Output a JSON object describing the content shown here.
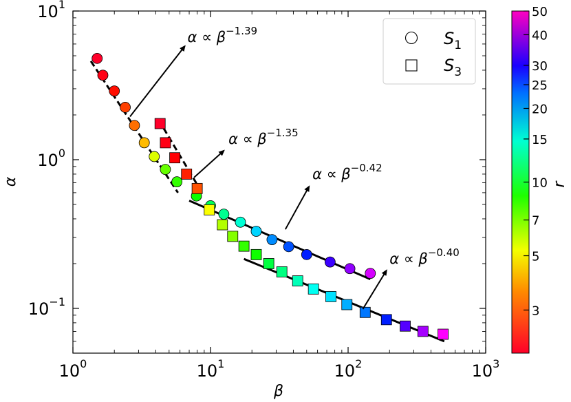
{
  "chart_data": {
    "type": "scatter",
    "xscale": "log",
    "yscale": "log",
    "xlim": [
      1,
      1000
    ],
    "ylim": [
      0.05,
      10
    ],
    "xlabel": "β",
    "ylabel": "α",
    "x_ticks": [
      {
        "value": 1,
        "base": "10",
        "exp": "0"
      },
      {
        "value": 10,
        "base": "10",
        "exp": "1"
      },
      {
        "value": 100,
        "base": "10",
        "exp": "2"
      },
      {
        "value": 1000,
        "base": "10",
        "exp": "3"
      }
    ],
    "y_ticks": [
      {
        "value": 0.1,
        "base": "10",
        "exp": "−1"
      },
      {
        "value": 1,
        "base": "10",
        "exp": "0"
      },
      {
        "value": 10,
        "base": "10",
        "exp": "1"
      }
    ],
    "legend": {
      "position": "top-right",
      "entries": [
        {
          "marker": "circle",
          "label": "S",
          "sub": "1"
        },
        {
          "marker": "square",
          "label": "S",
          "sub": "3"
        }
      ]
    },
    "colorbar": {
      "label": "r",
      "scale": "log",
      "range": [
        2,
        50
      ],
      "colormap": "gist_rainbow_r",
      "ticks": [
        {
          "value": 3,
          "label": "3"
        },
        {
          "value": 5,
          "label": "5"
        },
        {
          "value": 7,
          "label": "7"
        },
        {
          "value": 10,
          "label": "10"
        },
        {
          "value": 15,
          "label": "15"
        },
        {
          "value": 20,
          "label": "20"
        },
        {
          "value": 25,
          "label": "25"
        },
        {
          "value": 30,
          "label": "30"
        },
        {
          "value": 40,
          "label": "40"
        },
        {
          "value": 50,
          "label": "50"
        }
      ]
    },
    "series": [
      {
        "name": "S1",
        "marker": "circle",
        "points": [
          {
            "x": 1.5,
            "y": 4.8,
            "r": 2.0
          },
          {
            "x": 1.65,
            "y": 3.7,
            "r": 2.1
          },
          {
            "x": 2.0,
            "y": 2.9,
            "r": 2.3
          },
          {
            "x": 2.4,
            "y": 2.25,
            "r": 2.6
          },
          {
            "x": 2.8,
            "y": 1.7,
            "r": 2.9
          },
          {
            "x": 3.3,
            "y": 1.3,
            "r": 3.5
          },
          {
            "x": 3.9,
            "y": 1.05,
            "r": 4.5
          },
          {
            "x": 4.7,
            "y": 0.86,
            "r": 6.0
          },
          {
            "x": 5.7,
            "y": 0.71,
            "r": 6.8
          },
          {
            "x": 7.9,
            "y": 0.57,
            "r": 7.5
          },
          {
            "x": 10.0,
            "y": 0.49,
            "r": 9.5
          },
          {
            "x": 12.5,
            "y": 0.43,
            "r": 11.0
          },
          {
            "x": 16.5,
            "y": 0.38,
            "r": 13.0
          },
          {
            "x": 21.5,
            "y": 0.33,
            "r": 16.0
          },
          {
            "x": 28.0,
            "y": 0.29,
            "r": 19.0
          },
          {
            "x": 37.0,
            "y": 0.26,
            "r": 22.0
          },
          {
            "x": 50.0,
            "y": 0.23,
            "r": 25.0
          },
          {
            "x": 74.0,
            "y": 0.205,
            "r": 31.0
          },
          {
            "x": 103.0,
            "y": 0.185,
            "r": 38.0
          },
          {
            "x": 145.0,
            "y": 0.172,
            "r": 45.0
          }
        ]
      },
      {
        "name": "S3",
        "marker": "square",
        "points": [
          {
            "x": 4.3,
            "y": 1.75,
            "r": 2.0
          },
          {
            "x": 4.7,
            "y": 1.3,
            "r": 2.1
          },
          {
            "x": 5.5,
            "y": 1.03,
            "r": 2.2
          },
          {
            "x": 6.7,
            "y": 0.8,
            "r": 2.4
          },
          {
            "x": 8.0,
            "y": 0.64,
            "r": 2.7
          },
          {
            "x": 9.8,
            "y": 0.46,
            "r": 4.2
          },
          {
            "x": 12.2,
            "y": 0.365,
            "r": 5.0
          },
          {
            "x": 14.5,
            "y": 0.305,
            "r": 5.6
          },
          {
            "x": 17.5,
            "y": 0.262,
            "r": 6.8
          },
          {
            "x": 21.5,
            "y": 0.23,
            "r": 7.5
          },
          {
            "x": 26.5,
            "y": 0.2,
            "r": 9.0
          },
          {
            "x": 33.0,
            "y": 0.176,
            "r": 10.5
          },
          {
            "x": 43.0,
            "y": 0.153,
            "r": 12.0
          },
          {
            "x": 56.0,
            "y": 0.135,
            "r": 14.0
          },
          {
            "x": 75.0,
            "y": 0.12,
            "r": 15.5
          },
          {
            "x": 98.0,
            "y": 0.106,
            "r": 17.5
          },
          {
            "x": 133.0,
            "y": 0.094,
            "r": 20.0
          },
          {
            "x": 190.0,
            "y": 0.084,
            "r": 25.0
          },
          {
            "x": 260.0,
            "y": 0.076,
            "r": 33.0
          },
          {
            "x": 350.0,
            "y": 0.07,
            "r": 40.0
          },
          {
            "x": 490.0,
            "y": 0.067,
            "r": 50.0
          }
        ]
      }
    ],
    "fit_lines": [
      {
        "style": "dashed",
        "x1": 1.35,
        "y1": 4.6,
        "x2": 5.8,
        "y2": 0.6
      },
      {
        "style": "dashed",
        "x1": 4.2,
        "y1": 1.85,
        "x2": 8.0,
        "y2": 0.68
      },
      {
        "style": "solid",
        "x1": 7.0,
        "y1": 0.53,
        "x2": 145.0,
        "y2": 0.157
      },
      {
        "style": "solid",
        "x1": 17.5,
        "y1": 0.215,
        "x2": 500.0,
        "y2": 0.06
      }
    ],
    "annotations": [
      {
        "base": "α ∝ β",
        "exp": "−1.39",
        "text_x": 6.8,
        "text_y": 6.2,
        "tail_x": 2.6,
        "tail_y": 1.95,
        "head_x": 6.5,
        "head_y": 5.8
      },
      {
        "base": "α ∝ β",
        "exp": "−1.35",
        "text_x": 13.5,
        "text_y": 1.28,
        "tail_x": 7.6,
        "tail_y": 0.76,
        "head_x": 12.5,
        "head_y": 1.15
      },
      {
        "base": "α ∝ β",
        "exp": "−0.42",
        "text_x": 55.0,
        "text_y": 0.74,
        "tail_x": 35.0,
        "tail_y": 0.34,
        "head_x": 52.0,
        "head_y": 0.66
      },
      {
        "base": "α ∝ β",
        "exp": "−0.40",
        "text_x": 200.0,
        "text_y": 0.2,
        "tail_x": 128.0,
        "tail_y": 0.099,
        "head_x": 190.0,
        "head_y": 0.18
      }
    ]
  }
}
